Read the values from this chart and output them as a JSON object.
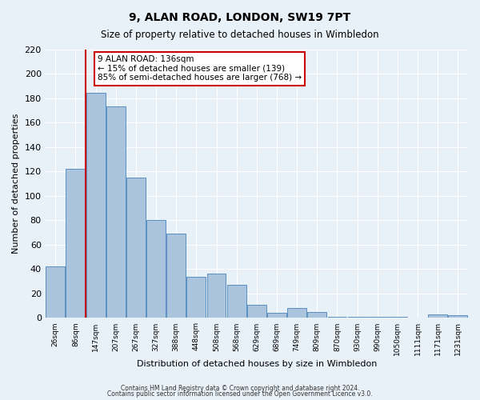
{
  "title": "9, ALAN ROAD, LONDON, SW19 7PT",
  "subtitle": "Size of property relative to detached houses in Wimbledon",
  "xlabel": "Distribution of detached houses by size in Wimbledon",
  "ylabel": "Number of detached properties",
  "bar_labels": [
    "26sqm",
    "86sqm",
    "147sqm",
    "207sqm",
    "267sqm",
    "327sqm",
    "388sqm",
    "448sqm",
    "508sqm",
    "568sqm",
    "629sqm",
    "689sqm",
    "749sqm",
    "809sqm",
    "870sqm",
    "930sqm",
    "990sqm",
    "1050sqm",
    "1111sqm",
    "1171sqm",
    "1231sqm"
  ],
  "bar_values": [
    42,
    122,
    184,
    173,
    115,
    80,
    69,
    34,
    36,
    27,
    11,
    4,
    8,
    5,
    1,
    1,
    1,
    1,
    0,
    3,
    2
  ],
  "bar_color": "#aac4de",
  "bar_edge_color": "#5a8fc0",
  "bg_color": "#e8f0f8",
  "grid_color": "#ffffff",
  "vline_color": "#cc0000",
  "annotation_text": "9 ALAN ROAD: 136sqm\n← 15% of detached houses are smaller (139)\n85% of semi-detached houses are larger (768) →",
  "annotation_box_color": "#ffffff",
  "annotation_box_edge": "#cc0000",
  "ylim": [
    0,
    220
  ],
  "yticks": [
    0,
    20,
    40,
    60,
    80,
    100,
    120,
    140,
    160,
    180,
    200,
    220
  ],
  "footer1": "Contains HM Land Registry data © Crown copyright and database right 2024.",
  "footer2": "Contains public sector information licensed under the Open Government Licence v3.0."
}
